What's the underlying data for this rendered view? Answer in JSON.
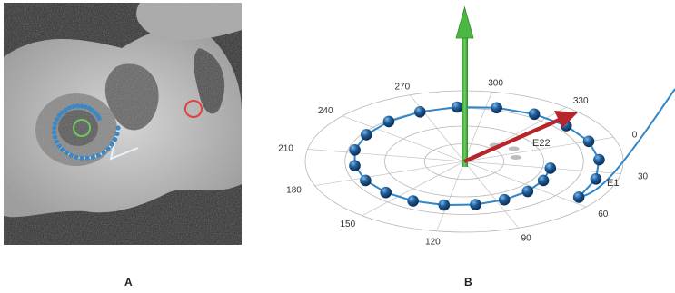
{
  "panel_a": {
    "label": "A",
    "content": "ct-cochlea-image",
    "markers": {
      "electrode_color": "#3b88c4",
      "center_marker_color": "#6ec85a",
      "reference_marker_color": "#e0413d"
    }
  },
  "panel_b": {
    "label": "B",
    "angle_labels": [
      "0",
      "30",
      "60",
      "90",
      "120",
      "150",
      "180",
      "210",
      "240",
      "270",
      "300",
      "330"
    ],
    "electrode_labels": {
      "first": "E1",
      "last": "E22"
    },
    "arrow_colors": {
      "vertical": "#3fa53a",
      "direction": "#b8242b"
    },
    "electrode_count": 22,
    "electrode_color": "#1f5f9c"
  }
}
